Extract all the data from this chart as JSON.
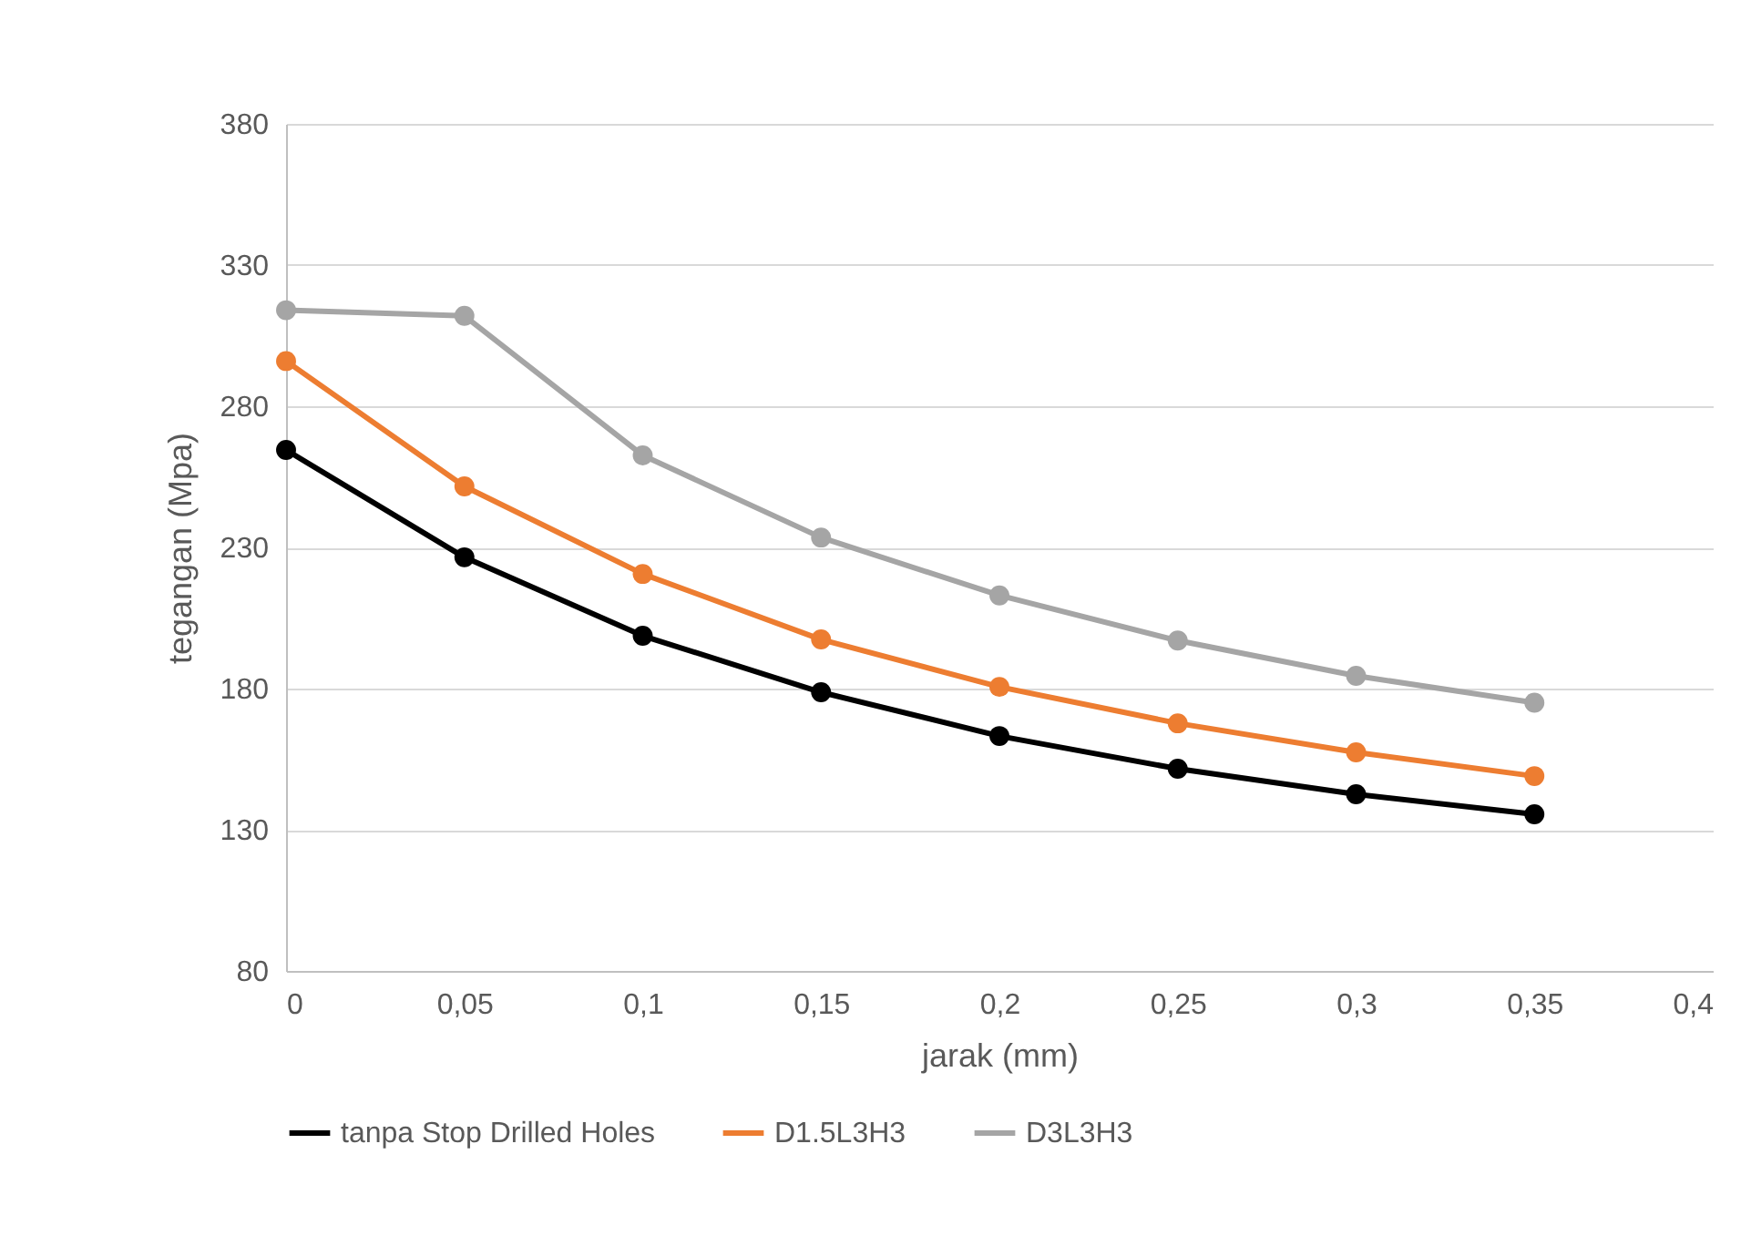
{
  "chart_data": {
    "type": "line",
    "xlabel": "jarak (mm)",
    "ylabel": "tegangan (Mpa)",
    "x": [
      0,
      0.05,
      0.1,
      0.15,
      0.2,
      0.25,
      0.3,
      0.35
    ],
    "series": [
      {
        "name": "tanpa Stop Drilled Holes",
        "color": "#000000",
        "values": [
          264.5,
          226.5,
          198.7,
          178.7,
          163.2,
          151.6,
          142.6,
          135.5
        ]
      },
      {
        "name": "D1.5L3H3",
        "color": "#ed7d31",
        "values": [
          296,
          251.6,
          220.6,
          197.4,
          180.6,
          167.7,
          157.4,
          149
        ]
      },
      {
        "name": "D3L3H3",
        "color": "#a5a5a5",
        "values": [
          314,
          312,
          262.6,
          233.5,
          213,
          197,
          184.5,
          175
        ]
      }
    ],
    "xlim": [
      0,
      0.4
    ],
    "xticks": [
      0,
      {
        "value": 0.05,
        "label": "0,05"
      },
      {
        "value": 0.1,
        "label": "0,1"
      },
      {
        "value": 0.15,
        "label": "0,15"
      },
      {
        "value": 0.2,
        "label": "0,2"
      },
      {
        "value": 0.25,
        "label": "0,25"
      },
      {
        "value": 0.3,
        "label": "0,3"
      },
      {
        "value": 0.35,
        "label": "0,35"
      },
      {
        "value": 0.4,
        "label": "0,4"
      }
    ],
    "ylim": [
      80,
      380
    ],
    "yticks": [
      80,
      130,
      180,
      230,
      280,
      330,
      380
    ],
    "grid": "y",
    "legend": "bottom",
    "marker": "circle",
    "line_style": "solid"
  }
}
